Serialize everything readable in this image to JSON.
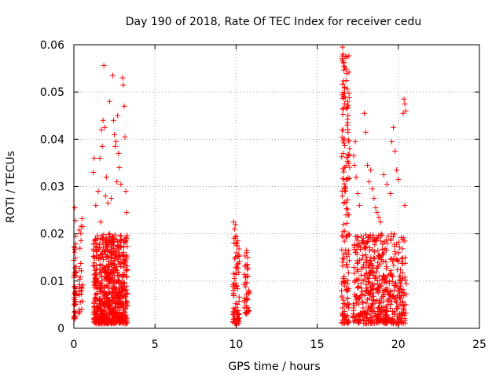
{
  "chart_data": {
    "type": "scatter",
    "title": "Day 190 of 2018, Rate Of TEC Index for receiver cedu",
    "xlabel": "GPS time / hours",
    "ylabel": "ROTI / TECUs",
    "xlim": [
      0,
      25
    ],
    "ylim": [
      0,
      0.06
    ],
    "x_ticks": [
      0,
      5,
      10,
      15,
      20,
      25
    ],
    "x_tick_labels": [
      "0",
      "5",
      "10",
      "15",
      "20",
      "25"
    ],
    "y_ticks": [
      0,
      0.01,
      0.02,
      0.03,
      0.04,
      0.05,
      0.06
    ],
    "y_tick_labels": [
      "0",
      "0.01",
      "0.02",
      "0.03",
      "0.04",
      "0.05",
      "0.06"
    ],
    "grid": true,
    "marker": "+",
    "color": "#ff0000",
    "series": [
      {
        "name": "ROTI",
        "clusters": [
          {
            "x_range": [
              0.0,
              0.15
            ],
            "y_range": [
              0.002,
              0.018
            ],
            "count": 45
          },
          {
            "x_range": [
              0.3,
              0.6
            ],
            "y_range": [
              0.003,
              0.024
            ],
            "count": 25
          },
          {
            "x_range": [
              1.2,
              3.3
            ],
            "y_range": [
              0.001,
              0.02
            ],
            "count": 700
          },
          {
            "x_range": [
              9.8,
              10.2
            ],
            "y_range": [
              0.001,
              0.022
            ],
            "count": 80
          },
          {
            "x_range": [
              10.5,
              10.8
            ],
            "y_range": [
              0.003,
              0.016
            ],
            "count": 40
          },
          {
            "x_range": [
              16.5,
              17.0
            ],
            "y_range": [
              0.001,
              0.058
            ],
            "count": 160
          },
          {
            "x_range": [
              17.2,
              20.5
            ],
            "y_range": [
              0.001,
              0.02
            ],
            "count": 550
          }
        ],
        "points": [
          [
            0.05,
            0.0255
          ],
          [
            0.1,
            0.0228
          ],
          [
            0.12,
            0.0195
          ],
          [
            0.5,
            0.0232
          ],
          [
            0.45,
            0.0216
          ],
          [
            0.55,
            0.0215
          ],
          [
            1.2,
            0.033
          ],
          [
            1.25,
            0.036
          ],
          [
            1.35,
            0.026
          ],
          [
            1.5,
            0.029
          ],
          [
            1.6,
            0.036
          ],
          [
            1.7,
            0.042
          ],
          [
            1.8,
            0.044
          ],
          [
            1.75,
            0.0385
          ],
          [
            1.85,
            0.0556
          ],
          [
            1.9,
            0.0425
          ],
          [
            1.95,
            0.028
          ],
          [
            2.0,
            0.032
          ],
          [
            2.2,
            0.048
          ],
          [
            2.4,
            0.0535
          ],
          [
            2.45,
            0.044
          ],
          [
            2.5,
            0.041
          ],
          [
            2.55,
            0.0385
          ],
          [
            2.6,
            0.0395
          ],
          [
            2.65,
            0.031
          ],
          [
            2.7,
            0.045
          ],
          [
            2.75,
            0.037
          ],
          [
            2.8,
            0.034
          ],
          [
            2.9,
            0.0305
          ],
          [
            3.0,
            0.053
          ],
          [
            3.05,
            0.0515
          ],
          [
            3.1,
            0.047
          ],
          [
            3.15,
            0.0405
          ],
          [
            3.2,
            0.029
          ],
          [
            3.25,
            0.0245
          ],
          [
            2.3,
            0.0275
          ],
          [
            2.1,
            0.0265
          ],
          [
            1.65,
            0.0225
          ],
          [
            9.85,
            0.0225
          ],
          [
            9.9,
            0.021
          ],
          [
            10.0,
            0.0195
          ],
          [
            10.05,
            0.018
          ],
          [
            10.65,
            0.0165
          ],
          [
            10.7,
            0.0135
          ],
          [
            16.55,
            0.0595
          ],
          [
            16.6,
            0.058
          ],
          [
            16.65,
            0.0555
          ],
          [
            16.7,
            0.051
          ],
          [
            16.75,
            0.0575
          ],
          [
            16.8,
            0.0465
          ],
          [
            16.85,
            0.043
          ],
          [
            16.9,
            0.0415
          ],
          [
            16.95,
            0.0395
          ],
          [
            17.0,
            0.038
          ],
          [
            16.6,
            0.037
          ],
          [
            16.7,
            0.034
          ],
          [
            16.8,
            0.0315
          ],
          [
            16.75,
            0.029
          ],
          [
            16.65,
            0.0265
          ],
          [
            16.9,
            0.024
          ],
          [
            17.25,
            0.0365
          ],
          [
            17.3,
            0.0345
          ],
          [
            17.35,
            0.0395
          ],
          [
            17.4,
            0.032
          ],
          [
            17.5,
            0.0285
          ],
          [
            17.6,
            0.026
          ],
          [
            17.9,
            0.0455
          ],
          [
            18.0,
            0.0415
          ],
          [
            18.1,
            0.0345
          ],
          [
            18.2,
            0.031
          ],
          [
            18.3,
            0.0335
          ],
          [
            18.4,
            0.0295
          ],
          [
            18.5,
            0.0275
          ],
          [
            18.6,
            0.0255
          ],
          [
            18.7,
            0.0245
          ],
          [
            18.8,
            0.0235
          ],
          [
            18.9,
            0.0225
          ],
          [
            19.1,
            0.0325
          ],
          [
            19.3,
            0.0305
          ],
          [
            19.5,
            0.0285
          ],
          [
            19.6,
            0.0395
          ],
          [
            19.7,
            0.0425
          ],
          [
            19.8,
            0.0375
          ],
          [
            19.9,
            0.0335
          ],
          [
            20.0,
            0.0315
          ],
          [
            20.35,
            0.0485
          ],
          [
            20.4,
            0.0475
          ],
          [
            20.45,
            0.046
          ],
          [
            20.3,
            0.0455
          ],
          [
            20.4,
            0.026
          ]
        ]
      }
    ]
  }
}
